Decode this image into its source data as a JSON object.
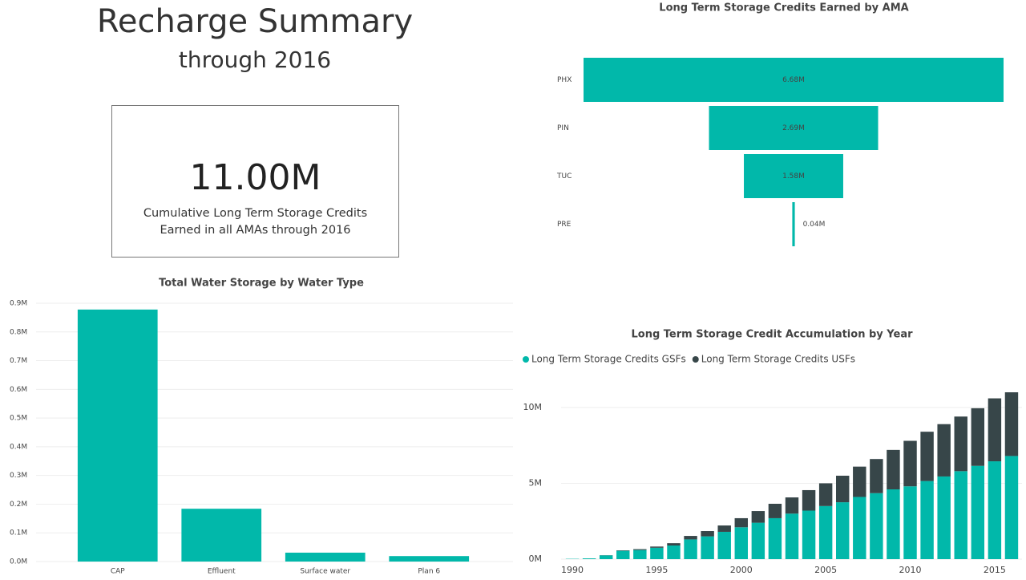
{
  "header": {
    "title": "Recharge Summary",
    "subtitle": "through 2016"
  },
  "card": {
    "value": "11.00M",
    "label": "Cumulative Long Term Storage Credits Earned in all AMAs through 2016"
  },
  "chart_data": [
    {
      "type": "funnel",
      "title": "Long Term Storage Credits Earned by AMA",
      "categories": [
        "PHX",
        "PIN",
        "TUC",
        "PRE"
      ],
      "values": [
        6680000,
        2690000,
        1580000,
        40000
      ],
      "value_labels": [
        "6.68M",
        "2.69M",
        "1.58M",
        "0.04M"
      ],
      "color": "#01b8aa"
    },
    {
      "type": "bar",
      "title": "Total Water Storage by Water Type",
      "categories": [
        "CAP",
        "Effluent",
        "Surface water",
        "Plan 6"
      ],
      "values": [
        878000,
        184000,
        31000,
        19000
      ],
      "color": "#01b8aa",
      "ylim": [
        0,
        900000
      ],
      "yticks": [
        {
          "value": 0,
          "label": "0.0M"
        },
        {
          "value": 100000,
          "label": "0.1M"
        },
        {
          "value": 200000,
          "label": "0.2M"
        },
        {
          "value": 300000,
          "label": "0.3M"
        },
        {
          "value": 400000,
          "label": "0.4M"
        },
        {
          "value": 500000,
          "label": "0.5M"
        },
        {
          "value": 600000,
          "label": "0.6M"
        },
        {
          "value": 700000,
          "label": "0.7M"
        },
        {
          "value": 800000,
          "label": "0.8M"
        },
        {
          "value": 900000,
          "label": "0.9M"
        }
      ],
      "grid": true
    },
    {
      "type": "stacked_bar",
      "title": "Long Term Storage Credit Accumulation by Year",
      "x": [
        1990,
        1991,
        1992,
        1993,
        1994,
        1995,
        1996,
        1997,
        1998,
        1999,
        2000,
        2001,
        2002,
        2003,
        2004,
        2005,
        2006,
        2007,
        2008,
        2009,
        2010,
        2011,
        2012,
        2013,
        2014,
        2015,
        2016
      ],
      "series": [
        {
          "name": "Long Term Storage Credits GSFs",
          "color": "#01b8aa",
          "values": [
            20000,
            50000,
            250000,
            550000,
            600000,
            750000,
            900000,
            1300000,
            1500000,
            1800000,
            2100000,
            2400000,
            2700000,
            3000000,
            3200000,
            3500000,
            3750000,
            4100000,
            4350000,
            4600000,
            4800000,
            5150000,
            5450000,
            5800000,
            6150000,
            6450000,
            6800000
          ]
        },
        {
          "name": "Long Term Storage Credits USFs",
          "color": "#374649",
          "values": [
            0,
            0,
            10000,
            30000,
            60000,
            80000,
            150000,
            230000,
            350000,
            420000,
            600000,
            770000,
            950000,
            1070000,
            1350000,
            1500000,
            1750000,
            2000000,
            2250000,
            2600000,
            3000000,
            3250000,
            3450000,
            3600000,
            3800000,
            4150000,
            4200000
          ]
        }
      ],
      "xlim": [
        1989.5,
        2016.5
      ],
      "xticks": [
        1990,
        1995,
        2000,
        2005,
        2010,
        2015
      ],
      "ylim": [
        0,
        11000000
      ],
      "yticks": [
        {
          "value": 0,
          "label": "0M"
        },
        {
          "value": 5000000,
          "label": "5M"
        },
        {
          "value": 10000000,
          "label": "10M"
        }
      ],
      "grid": true,
      "legend": "top-left"
    }
  ]
}
